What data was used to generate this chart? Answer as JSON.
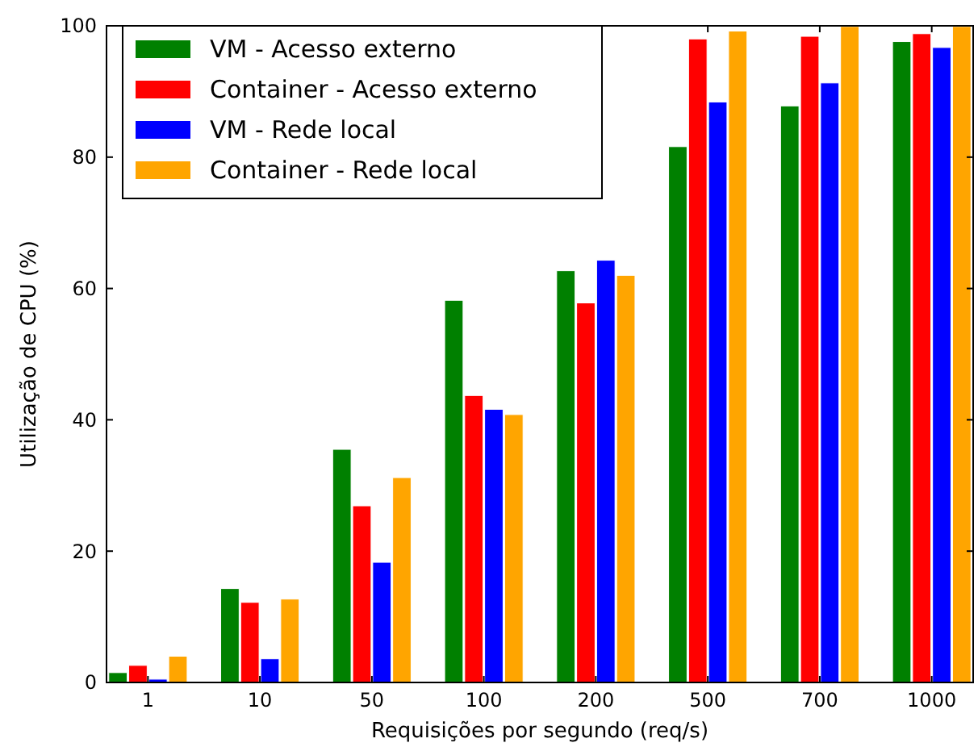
{
  "chart_data": {
    "type": "bar",
    "xlabel": "Requisições por segundo (req/s)",
    "ylabel": "Utilização de CPU (%)",
    "categories": [
      "1",
      "10",
      "50",
      "100",
      "200",
      "500",
      "700",
      "1000"
    ],
    "series": [
      {
        "name": "VM - Acesso externo",
        "color": "#008000",
        "values": [
          1.5,
          14.3,
          35.5,
          58.2,
          62.7,
          81.6,
          87.8,
          97.6
        ]
      },
      {
        "name": "Container - Acesso externo",
        "color": "#ff0000",
        "values": [
          2.6,
          12.2,
          26.9,
          43.7,
          57.8,
          98.0,
          98.4,
          98.8
        ]
      },
      {
        "name": "VM - Rede local",
        "color": "#0000ff",
        "values": [
          0.5,
          3.6,
          18.3,
          41.6,
          64.3,
          88.4,
          91.3,
          96.7
        ]
      },
      {
        "name": "Container - Rede local",
        "color": "#ffa500",
        "values": [
          4.0,
          12.7,
          31.2,
          40.8,
          62.0,
          99.2,
          99.9,
          99.9
        ]
      }
    ],
    "ylim": [
      0,
      100
    ],
    "yticks": [
      0,
      20,
      40,
      60,
      80,
      100
    ],
    "grid": false,
    "legend": "top left"
  }
}
